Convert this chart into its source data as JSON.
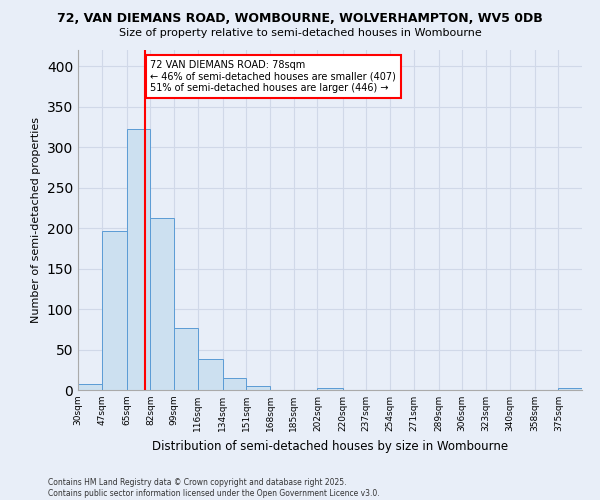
{
  "title_line1": "72, VAN DIEMANS ROAD, WOMBOURNE, WOLVERHAMPTON, WV5 0DB",
  "title_line2": "Size of property relative to semi-detached houses in Wombourne",
  "xlabel": "Distribution of semi-detached houses by size in Wombourne",
  "ylabel": "Number of semi-detached properties",
  "footer_line1": "Contains HM Land Registry data © Crown copyright and database right 2025.",
  "footer_line2": "Contains public sector information licensed under the Open Government Licence v3.0.",
  "bin_labels": [
    "30sqm",
    "47sqm",
    "65sqm",
    "82sqm",
    "99sqm",
    "116sqm",
    "134sqm",
    "151sqm",
    "168sqm",
    "185sqm",
    "202sqm",
    "220sqm",
    "237sqm",
    "254sqm",
    "271sqm",
    "289sqm",
    "306sqm",
    "323sqm",
    "340sqm",
    "358sqm",
    "375sqm"
  ],
  "bar_values": [
    8,
    196,
    322,
    213,
    77,
    38,
    15,
    5,
    0,
    0,
    2,
    0,
    0,
    0,
    0,
    0,
    0,
    0,
    0,
    0,
    2
  ],
  "bar_color": "#cce0f0",
  "bar_edge_color": "#5b9bd5",
  "grid_color": "#d0d8e8",
  "background_color": "#e8eef8",
  "property_line_x": 78,
  "annotation_text": "72 VAN DIEMANS ROAD: 78sqm\n← 46% of semi-detached houses are smaller (407)\n51% of semi-detached houses are larger (446) →",
  "annotation_box_color": "white",
  "annotation_box_edge": "red",
  "red_line_color": "red",
  "ylim": [
    0,
    420
  ],
  "yticks": [
    0,
    50,
    100,
    150,
    200,
    250,
    300,
    350,
    400
  ],
  "bin_edges": [
    30,
    47,
    65,
    82,
    99,
    116,
    134,
    151,
    168,
    185,
    202,
    220,
    237,
    254,
    271,
    289,
    306,
    323,
    340,
    358,
    375,
    392
  ]
}
